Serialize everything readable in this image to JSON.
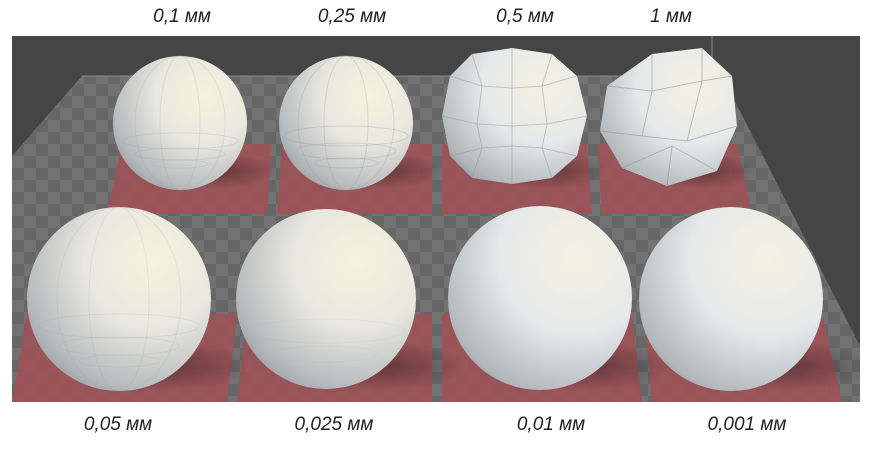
{
  "labels_top": [
    "0,1 мм",
    "0,25 мм",
    "0,5 мм",
    "1 мм"
  ],
  "labels_bottom": [
    "0,05 мм",
    "0,025 мм",
    "0,01 мм",
    "0,001 мм"
  ],
  "colors": {
    "background": "#ffffff",
    "viewport_bg": "#454545",
    "checker_light": "#6e6e6e",
    "checker_dark": "#5a5a5a",
    "pad_red": "#a05056",
    "sphere_base": "#ecebe2"
  },
  "spheres": [
    {
      "row": "top",
      "caption": "0,1 мм",
      "facets": "medium-fine"
    },
    {
      "row": "top",
      "caption": "0,25 мм",
      "facets": "medium"
    },
    {
      "row": "top",
      "caption": "0,5 мм",
      "facets": "coarse"
    },
    {
      "row": "top",
      "caption": "1 мм",
      "facets": "very-coarse"
    },
    {
      "row": "bottom",
      "caption": "0,05 мм",
      "facets": "fine"
    },
    {
      "row": "bottom",
      "caption": "0,025 мм",
      "facets": "very-fine"
    },
    {
      "row": "bottom",
      "caption": "0,01 мм",
      "facets": "smooth"
    },
    {
      "row": "bottom",
      "caption": "0,001 мм",
      "facets": "smooth"
    }
  ]
}
